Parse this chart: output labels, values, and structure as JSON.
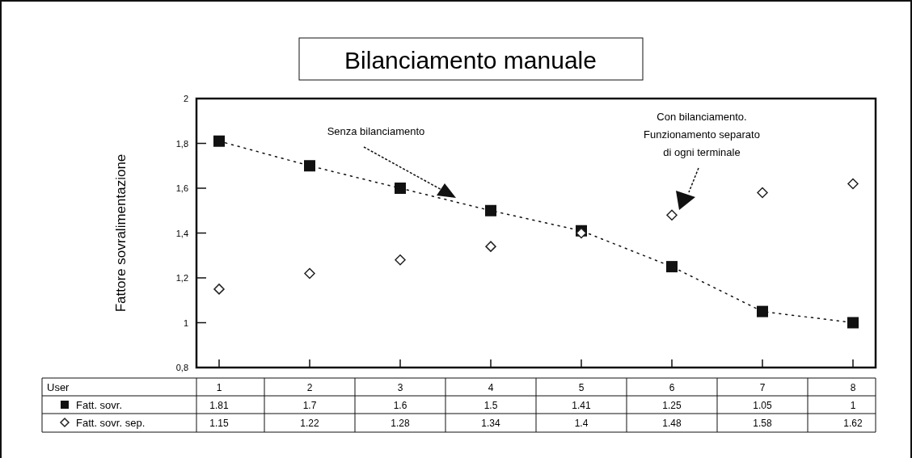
{
  "chart_data": {
    "type": "line",
    "title": "Bilanciamento manuale",
    "legend": "bottom left",
    "ylabel": "Fattore sovralimentazione",
    "categories": [
      "1",
      "2",
      "3",
      "4",
      "5",
      "6",
      "7",
      "8"
    ],
    "series": [
      {
        "name": "Fatt. sovr.",
        "color": "#111111",
        "values": [
          1.81,
          1.7,
          1.6,
          1.5,
          1.41,
          1.25,
          1.05,
          1
        ],
        "marker": "square",
        "line_style": "dotted"
      },
      {
        "name": "Fatt. sovr. sep.",
        "type": "scatter",
        "color": "#222222",
        "values": [
          1.15,
          1.22,
          1.28,
          1.34,
          1.4,
          1.48,
          1.58,
          1.62
        ],
        "marker": "diamond"
      }
    ],
    "ylim": [
      0.8,
      2
    ],
    "yticks": [
      {
        "value": 0.8,
        "label": "0,8"
      },
      1,
      {
        "value": 1.2,
        "label": "1,2"
      },
      {
        "value": 1.4,
        "label": "1,4"
      },
      {
        "value": 1.6,
        "label": "1,6"
      },
      {
        "value": 1.8,
        "label": "1,8"
      },
      2
    ],
    "data_labels": true,
    "annotations": [
      "Senza bilanciamento",
      "Con bilanciamento. Funzionamento separato di ogni terminale",
      "User"
    ]
  }
}
